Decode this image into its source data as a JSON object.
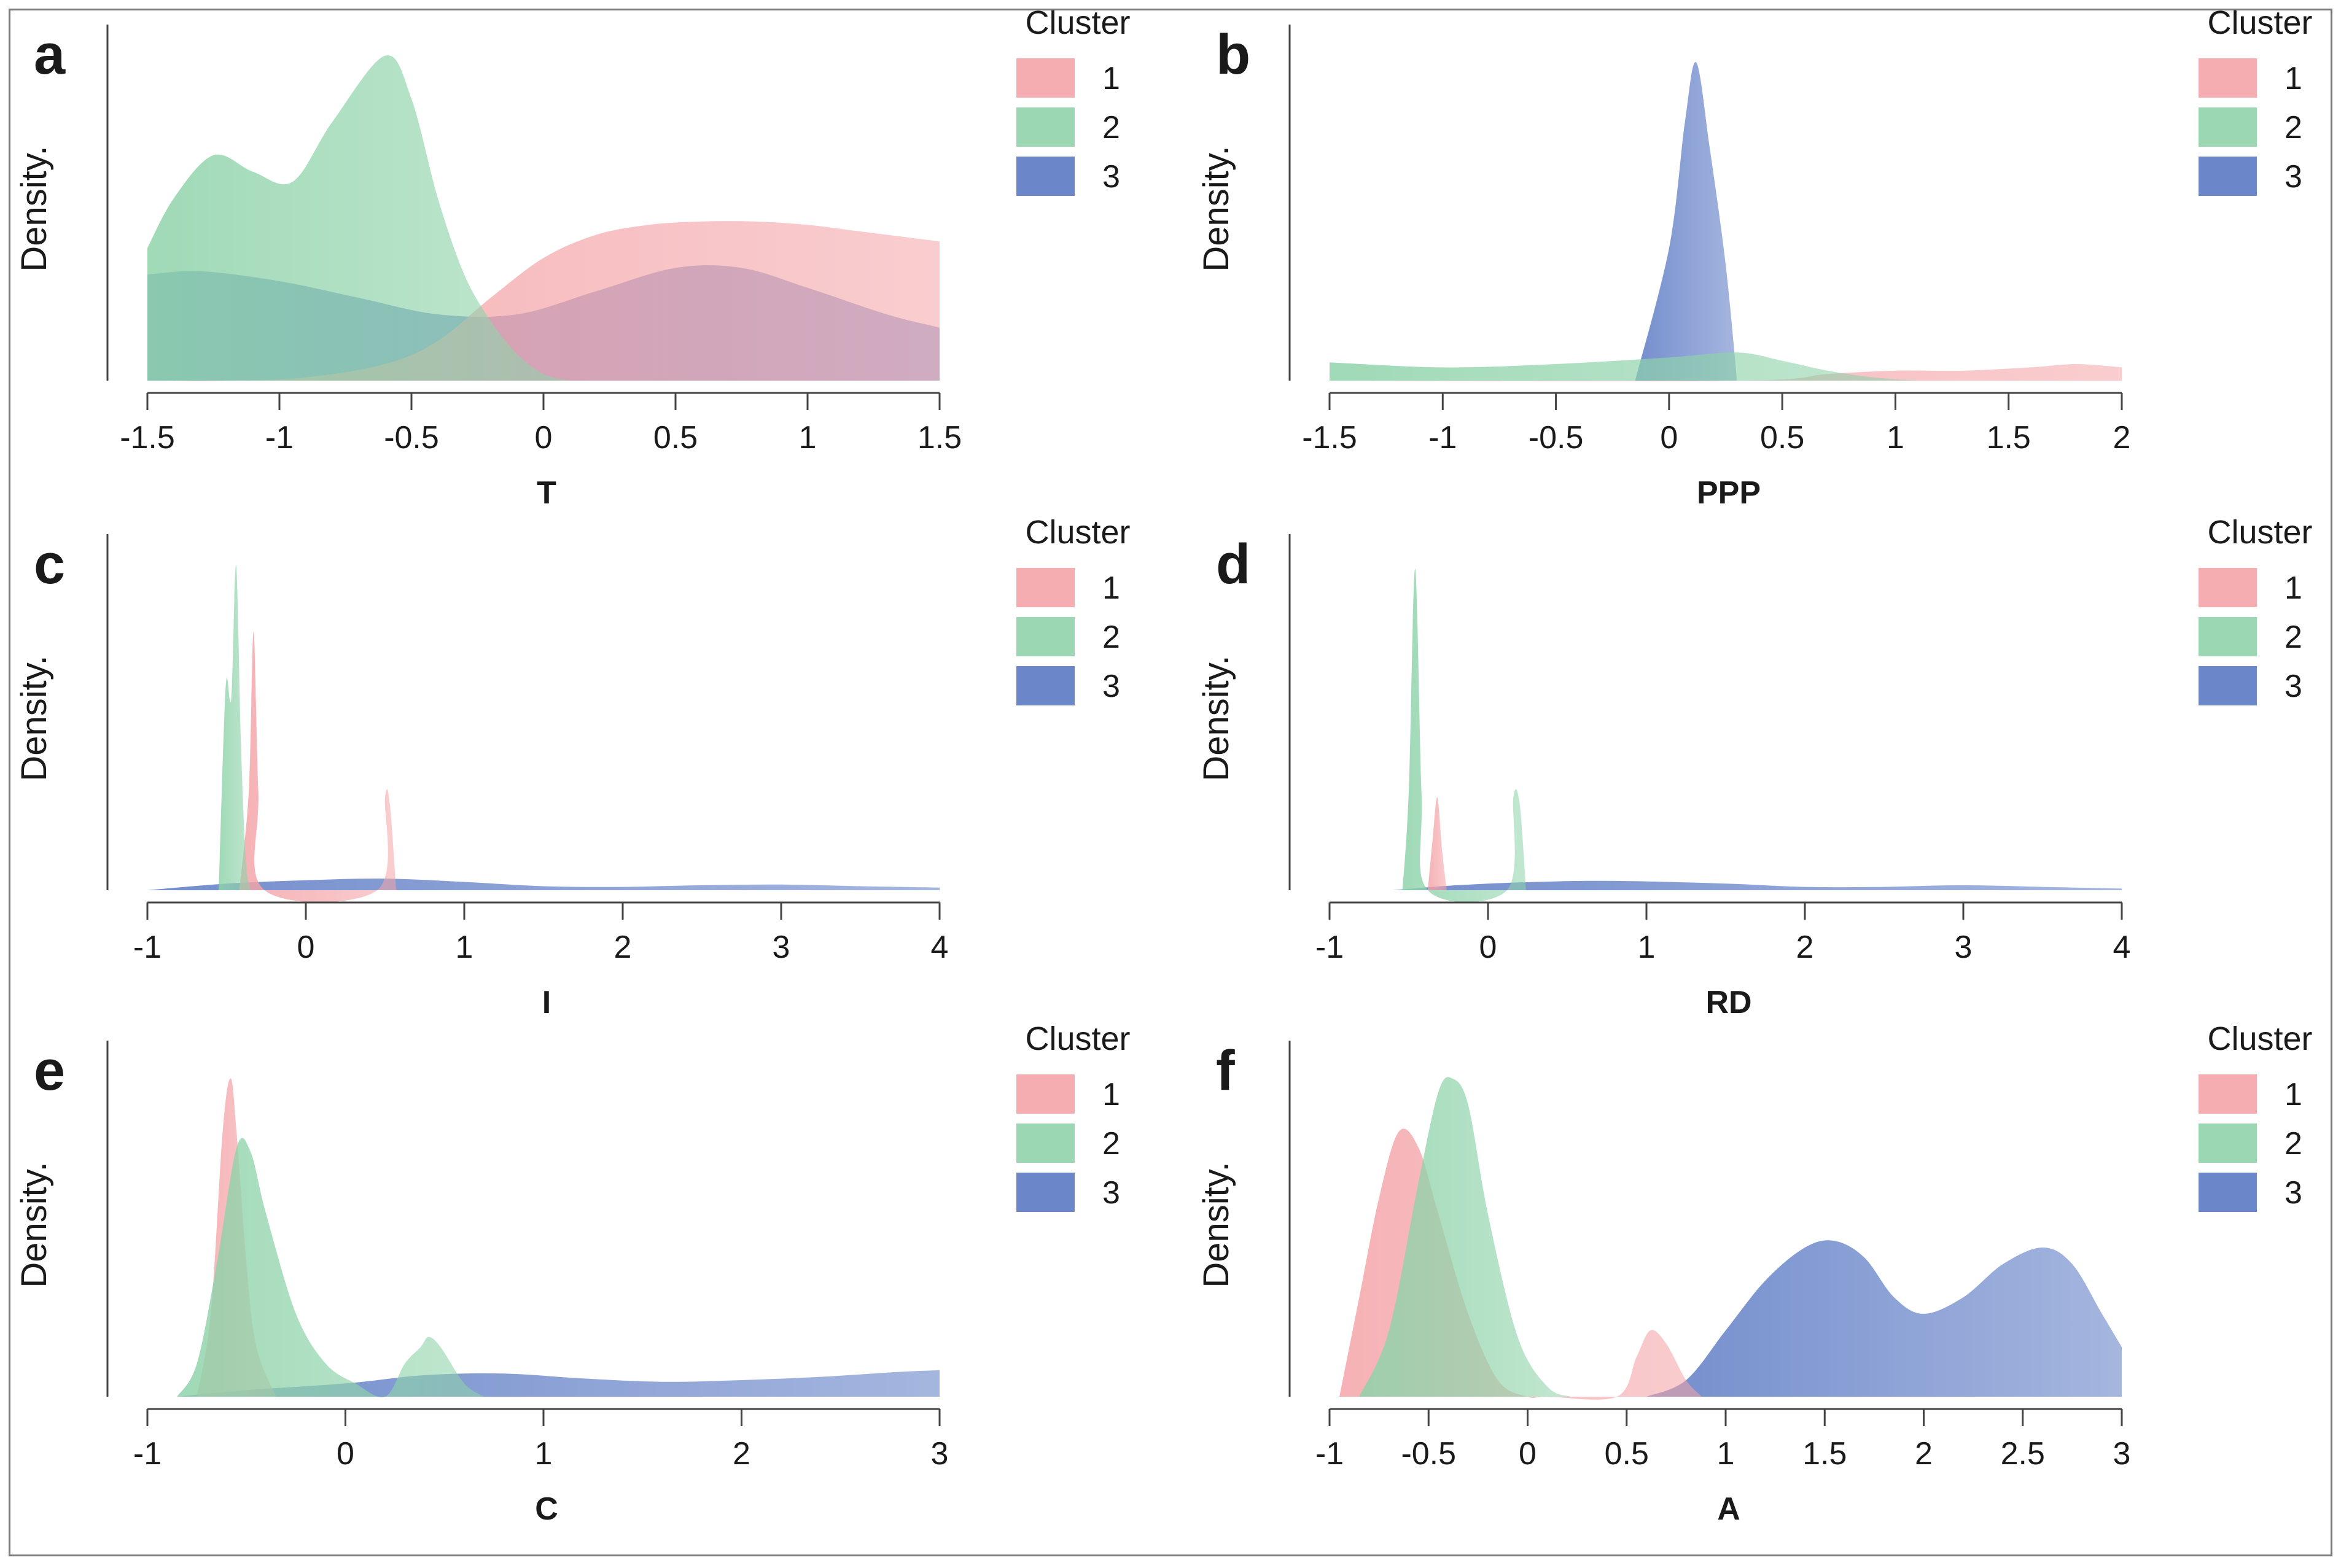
{
  "figure": {
    "density_label": "Density.",
    "legend_title": "Cluster",
    "legend_entries": [
      "1",
      "2",
      "3"
    ],
    "colors": {
      "1": "#f4a4a8",
      "2": "#8fd3aa",
      "3": "#5b7ac4"
    }
  },
  "chart_data": [
    {
      "type": "area",
      "panel": "a",
      "xlabel": "T",
      "ylabel": "Density.",
      "xlim": [
        -1.5,
        1.5
      ],
      "ylim": [
        0,
        1.0
      ],
      "xticks": [
        -1.5,
        -1,
        -0.5,
        0,
        0.5,
        1,
        1.5
      ],
      "xtick_labels": [
        "-1.5",
        "-1",
        "-0.5",
        "0",
        "0.5",
        "1",
        "1.5"
      ],
      "legend_title": "Cluster",
      "legend_position": "right",
      "series": [
        {
          "name": "1",
          "x": [
            -1.5,
            -1.2,
            -0.9,
            -0.6,
            -0.4,
            -0.2,
            0,
            0.2,
            0.4,
            0.6,
            0.8,
            1.0,
            1.2,
            1.5
          ],
          "y": [
            0.0,
            0.0,
            0.01,
            0.05,
            0.12,
            0.25,
            0.37,
            0.44,
            0.47,
            0.48,
            0.48,
            0.47,
            0.45,
            0.42
          ]
        },
        {
          "name": "2",
          "x": [
            -1.5,
            -1.4,
            -1.25,
            -1.1,
            -0.95,
            -0.8,
            -0.6,
            -0.5,
            -0.4,
            -0.3,
            -0.2,
            -0.1,
            0,
            0.1
          ],
          "y": [
            0.4,
            0.55,
            0.68,
            0.63,
            0.6,
            0.78,
            0.98,
            0.85,
            0.55,
            0.32,
            0.18,
            0.08,
            0.02,
            0.0
          ]
        },
        {
          "name": "3",
          "x": [
            -1.5,
            -1.3,
            -1.0,
            -0.7,
            -0.4,
            -0.1,
            0.2,
            0.5,
            0.75,
            1.0,
            1.3,
            1.5
          ],
          "y": [
            0.32,
            0.33,
            0.3,
            0.25,
            0.2,
            0.2,
            0.27,
            0.34,
            0.34,
            0.28,
            0.2,
            0.16
          ]
        }
      ]
    },
    {
      "type": "area",
      "panel": "b",
      "xlabel": "PPP",
      "ylabel": "Density.",
      "xlim": [
        -1.5,
        2
      ],
      "ylim": [
        0,
        1.0
      ],
      "xticks": [
        -1.5,
        -1,
        -0.5,
        0,
        0.5,
        1,
        1.5,
        2
      ],
      "xtick_labels": [
        "-1.5",
        "-1",
        "-0.5",
        "0",
        "0.5",
        "1",
        "1.5",
        "2"
      ],
      "legend_title": "Cluster",
      "legend_position": "right",
      "series": [
        {
          "name": "1",
          "x": [
            -1.5,
            0.3,
            0.7,
            1.0,
            1.3,
            1.6,
            1.8,
            2.0
          ],
          "y": [
            0.0,
            0.0,
            0.02,
            0.03,
            0.03,
            0.04,
            0.05,
            0.04
          ]
        },
        {
          "name": "2",
          "x": [
            -1.5,
            -1.0,
            -0.5,
            0,
            0.3,
            0.5,
            0.7,
            0.9,
            1.1
          ],
          "y": [
            0.055,
            0.04,
            0.05,
            0.07,
            0.085,
            0.06,
            0.03,
            0.01,
            0.0
          ]
        },
        {
          "name": "3",
          "x": [
            -0.15,
            0,
            0.07,
            0.12,
            0.18,
            0.25,
            0.3
          ],
          "y": [
            0.0,
            0.4,
            0.78,
            0.96,
            0.7,
            0.35,
            0.0
          ]
        }
      ]
    },
    {
      "type": "area",
      "panel": "c",
      "xlabel": "I",
      "ylabel": "Density.",
      "xlim": [
        -1,
        4
      ],
      "ylim": [
        0,
        1.0
      ],
      "xticks": [
        -1,
        0,
        1,
        2,
        3,
        4
      ],
      "xtick_labels": [
        "-1",
        "0",
        "1",
        "2",
        "3",
        "4"
      ],
      "legend_title": "Cluster",
      "legend_position": "right",
      "series": [
        {
          "name": "1",
          "x": [
            -0.42,
            -0.36,
            -0.33,
            -0.3,
            -0.26,
            0.45,
            0.5,
            0.53,
            0.57
          ],
          "y": [
            0.0,
            0.3,
            0.78,
            0.3,
            0.0,
            0.0,
            0.28,
            0.26,
            0.0
          ]
        },
        {
          "name": "2",
          "x": [
            -0.55,
            -0.52,
            -0.5,
            -0.47,
            -0.44,
            -0.41,
            -0.38,
            -0.35
          ],
          "y": [
            0.0,
            0.45,
            0.64,
            0.58,
            0.98,
            0.45,
            0.1,
            0.0
          ]
        },
        {
          "name": "3",
          "x": [
            -1.0,
            -0.5,
            0,
            0.5,
            1.0,
            1.5,
            2.0,
            2.5,
            3.0,
            3.5,
            4.0
          ],
          "y": [
            0.0,
            0.02,
            0.03,
            0.035,
            0.025,
            0.012,
            0.01,
            0.015,
            0.017,
            0.012,
            0.008
          ]
        }
      ]
    },
    {
      "type": "area",
      "panel": "d",
      "xlabel": "RD",
      "ylabel": "Density.",
      "xlim": [
        -1,
        4
      ],
      "ylim": [
        0,
        1.0
      ],
      "xticks": [
        -1,
        0,
        1,
        2,
        3,
        4
      ],
      "xtick_labels": [
        "-1",
        "0",
        "1",
        "2",
        "3",
        "4"
      ],
      "legend_title": "Cluster",
      "legend_position": "right",
      "series": [
        {
          "name": "1",
          "x": [
            -0.38,
            -0.35,
            -0.32,
            -0.29,
            -0.26
          ],
          "y": [
            0.0,
            0.15,
            0.28,
            0.12,
            0.0
          ]
        },
        {
          "name": "2",
          "x": [
            -0.54,
            -0.5,
            -0.46,
            -0.42,
            -0.38,
            0.12,
            0.16,
            0.2,
            0.24
          ],
          "y": [
            0.0,
            0.3,
            0.97,
            0.3,
            0.0,
            0.0,
            0.28,
            0.26,
            0.0
          ]
        },
        {
          "name": "3",
          "x": [
            -0.6,
            -0.2,
            0.3,
            0.8,
            1.5,
            2.0,
            2.5,
            3.0,
            3.5,
            4.0
          ],
          "y": [
            0.0,
            0.015,
            0.025,
            0.028,
            0.02,
            0.01,
            0.01,
            0.015,
            0.01,
            0.005
          ]
        }
      ]
    },
    {
      "type": "area",
      "panel": "e",
      "xlabel": "C",
      "ylabel": "Density.",
      "xlim": [
        -1,
        3
      ],
      "ylim": [
        0,
        1.0
      ],
      "xticks": [
        -1,
        0,
        1,
        2,
        3
      ],
      "xtick_labels": [
        "-1",
        "0",
        "1",
        "2",
        "3"
      ],
      "legend_title": "Cluster",
      "legend_position": "right",
      "series": [
        {
          "name": "1",
          "x": [
            -0.75,
            -0.68,
            -0.62,
            -0.58,
            -0.55,
            -0.5,
            -0.45,
            -0.35
          ],
          "y": [
            0.0,
            0.25,
            0.8,
            0.96,
            0.8,
            0.4,
            0.15,
            0.0
          ]
        },
        {
          "name": "2",
          "x": [
            -0.85,
            -0.75,
            -0.65,
            -0.55,
            -0.48,
            -0.4,
            -0.25,
            -0.1,
            0.05,
            0.2,
            0.3,
            0.38,
            0.42,
            0.48,
            0.6,
            0.7
          ],
          "y": [
            0.0,
            0.1,
            0.4,
            0.75,
            0.74,
            0.55,
            0.25,
            0.1,
            0.04,
            0.0,
            0.1,
            0.15,
            0.18,
            0.15,
            0.04,
            0.0
          ]
        },
        {
          "name": "3",
          "x": [
            -0.85,
            -0.5,
            0,
            0.4,
            0.8,
            1.2,
            1.6,
            2.0,
            2.4,
            2.8,
            3.0
          ],
          "y": [
            0.0,
            0.02,
            0.04,
            0.065,
            0.07,
            0.055,
            0.045,
            0.05,
            0.06,
            0.075,
            0.08
          ]
        }
      ]
    },
    {
      "type": "area",
      "panel": "f",
      "xlabel": "A",
      "ylabel": "Density.",
      "xlim": [
        -1,
        3
      ],
      "ylim": [
        0,
        1.0
      ],
      "xticks": [
        -1,
        -0.5,
        0,
        0.5,
        1,
        1.5,
        2,
        2.5,
        3
      ],
      "xtick_labels": [
        "-1",
        "-0.5",
        "0",
        "0.5",
        "1",
        "1.5",
        "2",
        "2.5",
        "3"
      ],
      "legend_title": "Cluster",
      "legend_position": "right",
      "series": [
        {
          "name": "1",
          "x": [
            -0.95,
            -0.85,
            -0.75,
            -0.65,
            -0.55,
            -0.45,
            -0.3,
            -0.15,
            0.0,
            0.1,
            0.45,
            0.55,
            0.62,
            0.7,
            0.8,
            0.88
          ],
          "y": [
            0.0,
            0.3,
            0.6,
            0.8,
            0.75,
            0.55,
            0.25,
            0.05,
            0.0,
            0.0,
            0.0,
            0.12,
            0.2,
            0.16,
            0.05,
            0.0
          ]
        },
        {
          "name": "2",
          "x": [
            -0.85,
            -0.7,
            -0.55,
            -0.45,
            -0.38,
            -0.3,
            -0.2,
            -0.05,
            0.1,
            0.22
          ],
          "y": [
            0.0,
            0.2,
            0.65,
            0.92,
            0.96,
            0.88,
            0.55,
            0.18,
            0.03,
            0.0
          ]
        },
        {
          "name": "3",
          "x": [
            0.6,
            0.8,
            1.0,
            1.2,
            1.4,
            1.55,
            1.7,
            1.85,
            2.0,
            2.2,
            2.4,
            2.6,
            2.75,
            2.9,
            3.0
          ],
          "y": [
            0.0,
            0.05,
            0.2,
            0.35,
            0.45,
            0.47,
            0.42,
            0.3,
            0.25,
            0.3,
            0.4,
            0.45,
            0.4,
            0.25,
            0.15
          ]
        }
      ]
    }
  ]
}
